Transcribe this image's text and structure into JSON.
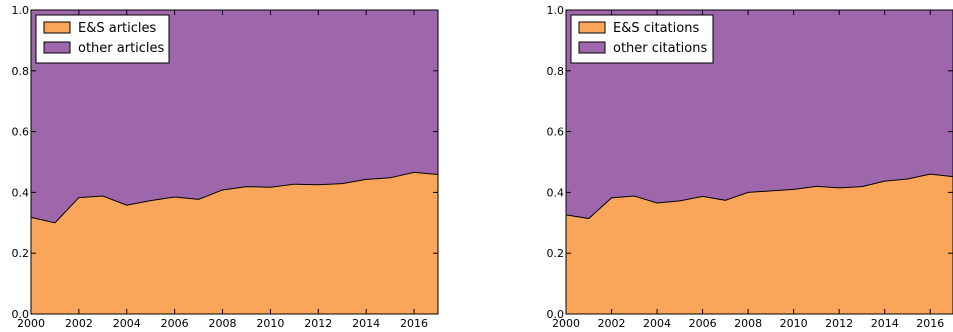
{
  "chart_data": [
    {
      "type": "area",
      "stacked": true,
      "x": [
        2000,
        2001,
        2002,
        2003,
        2004,
        2005,
        2006,
        2007,
        2008,
        2009,
        2010,
        2011,
        2012,
        2013,
        2014,
        2015,
        2016,
        2017
      ],
      "series": [
        {
          "name": "E&S articles",
          "color": "#f9a65a",
          "values": [
            0.318,
            0.3,
            0.383,
            0.388,
            0.358,
            0.373,
            0.385,
            0.377,
            0.408,
            0.419,
            0.417,
            0.427,
            0.425,
            0.429,
            0.443,
            0.448,
            0.466,
            0.459
          ]
        },
        {
          "name": "other articles",
          "color": "#9e66ab",
          "values": [
            0.682,
            0.7,
            0.617,
            0.612,
            0.642,
            0.627,
            0.615,
            0.623,
            0.592,
            0.581,
            0.583,
            0.573,
            0.575,
            0.571,
            0.557,
            0.552,
            0.534,
            0.541
          ]
        }
      ],
      "xlim": [
        2000,
        2017
      ],
      "ylim": [
        0,
        1.0
      ],
      "xticks": [
        "2000",
        "2002",
        "2004",
        "2006",
        "2008",
        "2010",
        "2012",
        "2014",
        "2016"
      ],
      "yticks": [
        "0.0",
        "0.2",
        "0.4",
        "0.6",
        "0.8",
        "1.0"
      ],
      "legend": "top-left"
    },
    {
      "type": "area",
      "stacked": true,
      "x": [
        2000,
        2001,
        2002,
        2003,
        2004,
        2005,
        2006,
        2007,
        2008,
        2009,
        2010,
        2011,
        2012,
        2013,
        2014,
        2015,
        2016,
        2017
      ],
      "series": [
        {
          "name": "E&S citations",
          "color": "#f9a65a",
          "values": [
            0.326,
            0.314,
            0.382,
            0.388,
            0.365,
            0.372,
            0.387,
            0.374,
            0.4,
            0.405,
            0.41,
            0.42,
            0.415,
            0.419,
            0.437,
            0.444,
            0.46,
            0.452
          ]
        },
        {
          "name": "other citations",
          "color": "#9e66ab",
          "values": [
            0.674,
            0.686,
            0.618,
            0.612,
            0.635,
            0.628,
            0.613,
            0.626,
            0.6,
            0.595,
            0.59,
            0.58,
            0.585,
            0.581,
            0.563,
            0.556,
            0.54,
            0.548
          ]
        }
      ],
      "xlim": [
        2000,
        2017
      ],
      "ylim": [
        0,
        1.0
      ],
      "xticks": [
        "2000",
        "2002",
        "2004",
        "2006",
        "2008",
        "2010",
        "2012",
        "2014",
        "2016"
      ],
      "yticks": [
        "0.0",
        "0.2",
        "0.4",
        "0.6",
        "0.8",
        "1.0"
      ],
      "legend": "top-left"
    }
  ]
}
